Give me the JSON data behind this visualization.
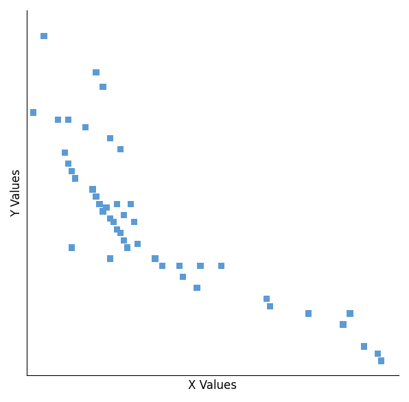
{
  "points": [
    [
      3,
      93
    ],
    [
      0,
      72
    ],
    [
      18,
      83
    ],
    [
      20,
      79
    ],
    [
      7,
      70
    ],
    [
      10,
      70
    ],
    [
      15,
      68
    ],
    [
      22,
      65
    ],
    [
      25,
      62
    ],
    [
      9,
      61
    ],
    [
      10,
      58
    ],
    [
      11,
      56
    ],
    [
      12,
      54
    ],
    [
      17,
      51
    ],
    [
      18,
      49
    ],
    [
      19,
      47
    ],
    [
      20,
      45
    ],
    [
      21,
      46
    ],
    [
      22,
      43
    ],
    [
      23,
      42
    ],
    [
      24,
      47
    ],
    [
      26,
      44
    ],
    [
      28,
      47
    ],
    [
      24,
      40
    ],
    [
      25,
      39
    ],
    [
      26,
      37
    ],
    [
      27,
      35
    ],
    [
      11,
      35
    ],
    [
      22,
      32
    ],
    [
      30,
      36
    ],
    [
      29,
      42
    ],
    [
      35,
      32
    ],
    [
      37,
      30
    ],
    [
      42,
      30
    ],
    [
      48,
      30
    ],
    [
      54,
      30
    ],
    [
      43,
      27
    ],
    [
      47,
      24
    ],
    [
      67,
      21
    ],
    [
      68,
      19
    ],
    [
      79,
      17
    ],
    [
      89,
      14
    ],
    [
      91,
      17
    ],
    [
      95,
      8
    ],
    [
      99,
      6
    ],
    [
      100,
      4
    ]
  ],
  "scatter_color": "#5B9BD5",
  "marker": "s",
  "marker_size": 45,
  "xlabel": "X Values",
  "ylabel": "Y Values",
  "xlim": [
    -2,
    105
  ],
  "ylim": [
    0,
    100
  ],
  "background_color": "#ffffff",
  "axis_color": "#000000",
  "label_fontsize": 12
}
